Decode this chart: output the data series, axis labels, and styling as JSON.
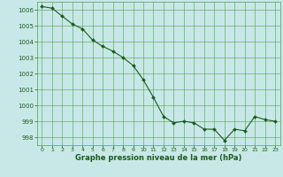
{
  "x": [
    0,
    1,
    2,
    3,
    4,
    5,
    6,
    7,
    8,
    9,
    10,
    11,
    12,
    13,
    14,
    15,
    16,
    17,
    18,
    19,
    20,
    21,
    22,
    23
  ],
  "y": [
    1006.2,
    1006.1,
    1005.6,
    1005.1,
    1004.8,
    1004.1,
    1003.7,
    1003.4,
    1003.0,
    1002.5,
    1001.6,
    1000.5,
    999.3,
    998.9,
    999.0,
    998.9,
    998.5,
    998.5,
    997.8,
    998.5,
    998.4,
    999.3,
    999.1,
    999.0
  ],
  "line_color": "#1a5c1a",
  "marker_color": "#1a5c1a",
  "bg_plot": "#c8e8e8",
  "bg_fig": "#c8e8e8",
  "grid_color": "#4da04d",
  "xlabel": "Graphe pression niveau de la mer (hPa)",
  "xlabel_color": "#1a5c1a",
  "tick_color": "#1a5c1a",
  "ylim_min": 997.5,
  "ylim_max": 1006.5,
  "xlim_min": -0.5,
  "xlim_max": 23.5,
  "yticks": [
    998,
    999,
    1000,
    1001,
    1002,
    1003,
    1004,
    1005,
    1006
  ],
  "xticks": [
    0,
    1,
    2,
    3,
    4,
    5,
    6,
    7,
    8,
    9,
    10,
    11,
    12,
    13,
    14,
    15,
    16,
    17,
    18,
    19,
    20,
    21,
    22,
    23
  ]
}
